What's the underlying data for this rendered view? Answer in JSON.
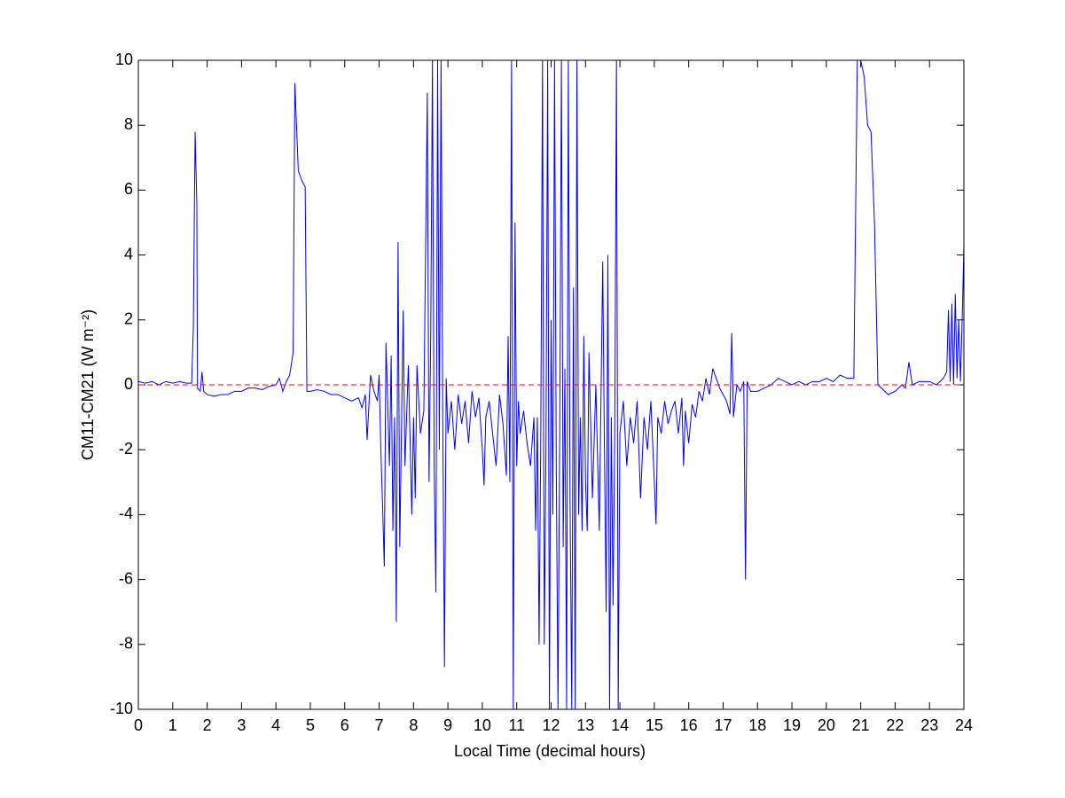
{
  "chart_data": {
    "type": "line",
    "xlabel": "Local Time (decimal hours)",
    "ylabel": "CM11-CM21 (W m⁻²)",
    "xlim": [
      0,
      24
    ],
    "ylim": [
      -10,
      10
    ],
    "xticks": [
      0,
      1,
      2,
      3,
      4,
      5,
      6,
      7,
      8,
      9,
      10,
      11,
      12,
      13,
      14,
      15,
      16,
      17,
      18,
      19,
      20,
      21,
      22,
      23,
      24
    ],
    "yticks": [
      -10,
      -8,
      -6,
      -4,
      -2,
      0,
      2,
      4,
      6,
      8,
      10
    ],
    "reference_line": {
      "value": 0,
      "color": "#ff0000"
    },
    "series": [
      {
        "color": "#0000ff",
        "x": [
          0,
          0.2,
          0.4,
          0.6,
          0.8,
          1.0,
          1.2,
          1.4,
          1.55,
          1.6,
          1.65,
          1.7,
          1.72,
          1.8,
          1.85,
          1.9,
          2.0,
          2.2,
          2.4,
          2.6,
          2.8,
          3.0,
          3.2,
          3.4,
          3.6,
          3.8,
          4.0,
          4.1,
          4.2,
          4.3,
          4.4,
          4.5,
          4.55,
          4.65,
          4.75,
          4.85,
          4.9,
          5.0,
          5.2,
          5.4,
          5.6,
          5.8,
          6.0,
          6.2,
          6.4,
          6.5,
          6.6,
          6.65,
          6.75,
          6.85,
          6.95,
          7.0,
          7.05,
          7.1,
          7.15,
          7.2,
          7.3,
          7.35,
          7.4,
          7.45,
          7.5,
          7.55,
          7.6,
          7.7,
          7.75,
          7.85,
          7.95,
          8.0,
          8.05,
          8.1,
          8.2,
          8.3,
          8.4,
          8.45,
          8.5,
          8.55,
          8.6,
          8.65,
          8.7,
          8.75,
          8.8,
          8.85,
          8.9,
          8.95,
          9.0,
          9.1,
          9.2,
          9.3,
          9.4,
          9.5,
          9.6,
          9.7,
          9.8,
          9.9,
          10.0,
          10.05,
          10.1,
          10.2,
          10.3,
          10.4,
          10.5,
          10.6,
          10.7,
          10.75,
          10.8,
          10.85,
          10.9,
          10.95,
          11.0,
          11.05,
          11.1,
          11.2,
          11.3,
          11.4,
          11.5,
          11.55,
          11.6,
          11.65,
          11.7,
          11.75,
          11.8,
          11.85,
          11.9,
          11.95,
          12.0,
          12.05,
          12.1,
          12.15,
          12.2,
          12.25,
          12.3,
          12.35,
          12.4,
          12.45,
          12.5,
          12.55,
          12.6,
          12.65,
          12.7,
          12.75,
          12.8,
          12.85,
          12.9,
          12.95,
          13.0,
          13.05,
          13.1,
          13.2,
          13.3,
          13.4,
          13.5,
          13.55,
          13.6,
          13.65,
          13.7,
          13.75,
          13.8,
          13.85,
          13.9,
          13.95,
          14.0,
          14.1,
          14.2,
          14.3,
          14.4,
          14.5,
          14.6,
          14.7,
          14.8,
          14.9,
          15.0,
          15.05,
          15.1,
          15.2,
          15.3,
          15.4,
          15.5,
          15.6,
          15.7,
          15.8,
          15.85,
          15.9,
          16.0,
          16.1,
          16.2,
          16.3,
          16.4,
          16.5,
          16.6,
          16.7,
          16.8,
          16.9,
          17.0,
          17.1,
          17.2,
          17.25,
          17.3,
          17.4,
          17.5,
          17.6,
          17.65,
          17.7,
          17.8,
          18.0,
          18.2,
          18.4,
          18.6,
          18.8,
          19.0,
          19.2,
          19.4,
          19.6,
          19.8,
          20.0,
          20.2,
          20.4,
          20.6,
          20.8,
          20.9,
          21.0,
          21.1,
          21.2,
          21.3,
          21.4,
          21.5,
          21.6,
          21.8,
          22.0,
          22.2,
          22.3,
          22.4,
          22.5,
          22.7,
          23.0,
          23.2,
          23.4,
          23.5,
          23.55,
          23.6,
          23.65,
          23.7,
          23.75,
          23.8,
          23.85,
          23.9,
          23.95,
          24.0
        ],
        "values": [
          0.1,
          0.05,
          0.1,
          0.0,
          0.1,
          0.05,
          0.1,
          0.05,
          0.05,
          1.8,
          7.8,
          5.6,
          -0.1,
          -0.2,
          0.4,
          -0.2,
          -0.3,
          -0.35,
          -0.3,
          -0.3,
          -0.2,
          -0.2,
          -0.1,
          -0.1,
          -0.15,
          -0.05,
          0.0,
          0.2,
          -0.2,
          0.1,
          0.3,
          1.0,
          9.3,
          6.6,
          6.3,
          6.1,
          -0.2,
          -0.2,
          -0.15,
          -0.2,
          -0.3,
          -0.3,
          -0.4,
          -0.5,
          -0.4,
          -0.7,
          -0.3,
          -1.7,
          0.3,
          -0.2,
          -0.5,
          0.3,
          -2.0,
          -3.7,
          -5.6,
          1.3,
          -2.5,
          0.9,
          -4.5,
          -1.0,
          -7.3,
          4.4,
          -5.0,
          2.3,
          -2.5,
          0.6,
          -4.0,
          -1.0,
          -3.5,
          0.6,
          -1.5,
          -0.8,
          9.0,
          -3.0,
          1.5,
          10,
          -2.5,
          -6.4,
          10,
          -2.0,
          10,
          -1.0,
          -8.7,
          0.2,
          -1.5,
          -0.5,
          -2.0,
          -0.3,
          -1.2,
          -0.5,
          -1.8,
          -0.2,
          -1.0,
          -0.4,
          -2.0,
          -3.1,
          -1.0,
          -0.5,
          -1.5,
          -2.5,
          -0.3,
          -1.2,
          -2.8,
          1.5,
          -3.0,
          10,
          -10,
          5.0,
          -2.5,
          -0.5,
          -1.5,
          -0.8,
          -1.8,
          -2.5,
          -1.0,
          -4.5,
          -1.0,
          -8.0,
          -1.5,
          10,
          -8.0,
          -2.0,
          10,
          -10,
          2.0,
          -4.0,
          10,
          -2.5,
          -10,
          -1.5,
          10,
          -5.0,
          0.5,
          -10,
          10,
          -3.5,
          -10,
          3.0,
          -10,
          10,
          -4.0,
          -1.0,
          -4.5,
          1.5,
          -3.0,
          -4.5,
          1.0,
          -3.5,
          0.0,
          -4.5,
          3.8,
          -2.0,
          -7.0,
          4.0,
          -10,
          -1.0,
          -6.8,
          -1.5,
          10,
          -10,
          -1.5,
          -0.5,
          -2.5,
          -1.0,
          -1.8,
          -0.5,
          -3.5,
          -1.0,
          -2.0,
          -0.5,
          -3.0,
          -4.3,
          -1.0,
          -1.5,
          -0.5,
          -1.2,
          -0.8,
          -0.5,
          -1.5,
          -0.4,
          -2.5,
          -0.8,
          -1.8,
          -0.6,
          -1.0,
          -0.2,
          -0.5,
          0.2,
          -0.3,
          0.5,
          0.2,
          -0.1,
          -0.3,
          -0.5,
          -0.9,
          1.6,
          -1.0,
          0.0,
          -0.2,
          0.1,
          -6.0,
          0.1,
          -0.2,
          -0.2,
          -0.1,
          0.0,
          0.2,
          0.1,
          0.0,
          0.1,
          0.0,
          0.1,
          0.1,
          0.2,
          0.1,
          0.3,
          0.2,
          0.2,
          10,
          10,
          9.5,
          8.0,
          7.8,
          5.0,
          0.0,
          -0.1,
          -0.3,
          -0.2,
          0.0,
          -0.1,
          0.7,
          0.0,
          0.1,
          0.1,
          0.0,
          0.2,
          0.4,
          2.3,
          0.1,
          2.5,
          0.0,
          2.8,
          0.2,
          2.0,
          0.1,
          2.0,
          4.3
        ]
      }
    ]
  }
}
